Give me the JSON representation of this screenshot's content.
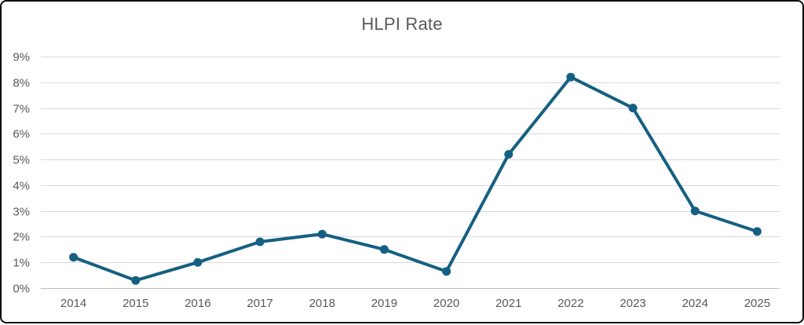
{
  "chart_data": {
    "type": "line",
    "title": "HLPI Rate",
    "x": [
      "2014",
      "2015",
      "2016",
      "2017",
      "2018",
      "2019",
      "2020",
      "2021",
      "2022",
      "2023",
      "2024",
      "2025"
    ],
    "series": [
      {
        "name": "HLPI Rate",
        "values": [
          1.2,
          0.3,
          1.0,
          1.8,
          2.1,
          1.5,
          0.65,
          5.2,
          8.2,
          7.0,
          3.0,
          2.2
        ]
      }
    ],
    "xlabel": "",
    "ylabel": "",
    "ylim": [
      0,
      9
    ],
    "ytick_step": 1,
    "ytick_labels": [
      "0%",
      "1%",
      "2%",
      "3%",
      "4%",
      "5%",
      "6%",
      "7%",
      "8%",
      "9%"
    ],
    "grid": "horizontal",
    "legend": "none",
    "markers": "circle",
    "colors": {
      "line": "#156082",
      "marker": "#156082",
      "title_text": "#595959",
      "tick_text": "#595959",
      "gridline": "#d9d9d9",
      "axis_line": "#bfbfbf",
      "background": "#ffffff",
      "frame_border": "#0a0a0a"
    }
  }
}
